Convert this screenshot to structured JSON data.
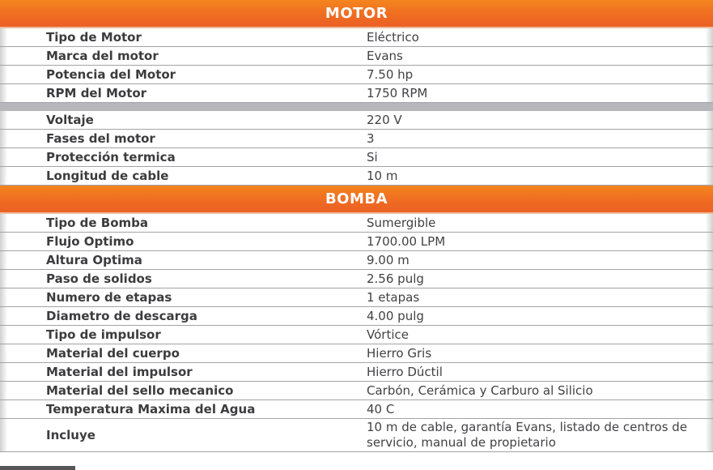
{
  "table": {
    "sections": [
      {
        "title": "MOTOR",
        "groups": [
          {
            "rows": [
              {
                "label": "Tipo de Motor",
                "value": "Eléctrico"
              },
              {
                "label": "Marca del motor",
                "value": "Evans"
              },
              {
                "label": "Potencia del Motor",
                "value": "7.50 hp"
              },
              {
                "label": "RPM del Motor",
                "value": "1750 RPM"
              }
            ]
          },
          {
            "rows": [
              {
                "label": "Voltaje",
                "value": "220 V"
              },
              {
                "label": "Fases del motor",
                "value": "3"
              },
              {
                "label": "Protección termica",
                "value": "Si"
              },
              {
                "label": "Longitud de cable",
                "value": "10 m"
              }
            ]
          }
        ]
      },
      {
        "title": "BOMBA",
        "groups": [
          {
            "rows": [
              {
                "label": "Tipo de Bomba",
                "value": "Sumergible"
              },
              {
                "label": "Flujo Optimo",
                "value": "1700.00 LPM"
              },
              {
                "label": "Altura Optima",
                "value": "9.00 m"
              },
              {
                "label": "Paso de solidos",
                "value": "2.56 pulg"
              },
              {
                "label": "Numero de etapas",
                "value": "1 etapas"
              },
              {
                "label": "Diametro de descarga",
                "value": "4.00 pulg"
              },
              {
                "label": "Tipo de impulsor",
                "value": "Vórtice"
              },
              {
                "label": "Material del cuerpo",
                "value": "Hierro Gris"
              },
              {
                "label": "Material del impulsor",
                "value": "Hierro Dúctil"
              },
              {
                "label": "Material del sello mecanico",
                "value": "Carbón, Cerámica y Carburo al Silicio"
              },
              {
                "label": "Temperatura Maxima del Agua",
                "value": "40 C"
              },
              {
                "label": "Incluye",
                "value": "10 m de cable, garantía Evans, listado de centros de servicio, manual de propietario"
              }
            ]
          }
        ]
      }
    ]
  },
  "colors": {
    "header_gradient_top": "#f4851e",
    "header_gradient_bottom": "#ec6124",
    "header_underline": "#ecbd9e",
    "header_text": "#ffffff",
    "label_text": "#3c3c3e",
    "value_text": "#424245",
    "row_border": "#a3a3a8",
    "group_divider": "#b7b7bb",
    "edge_fade": "#cfcfcf",
    "peek_bar": "#565658"
  }
}
